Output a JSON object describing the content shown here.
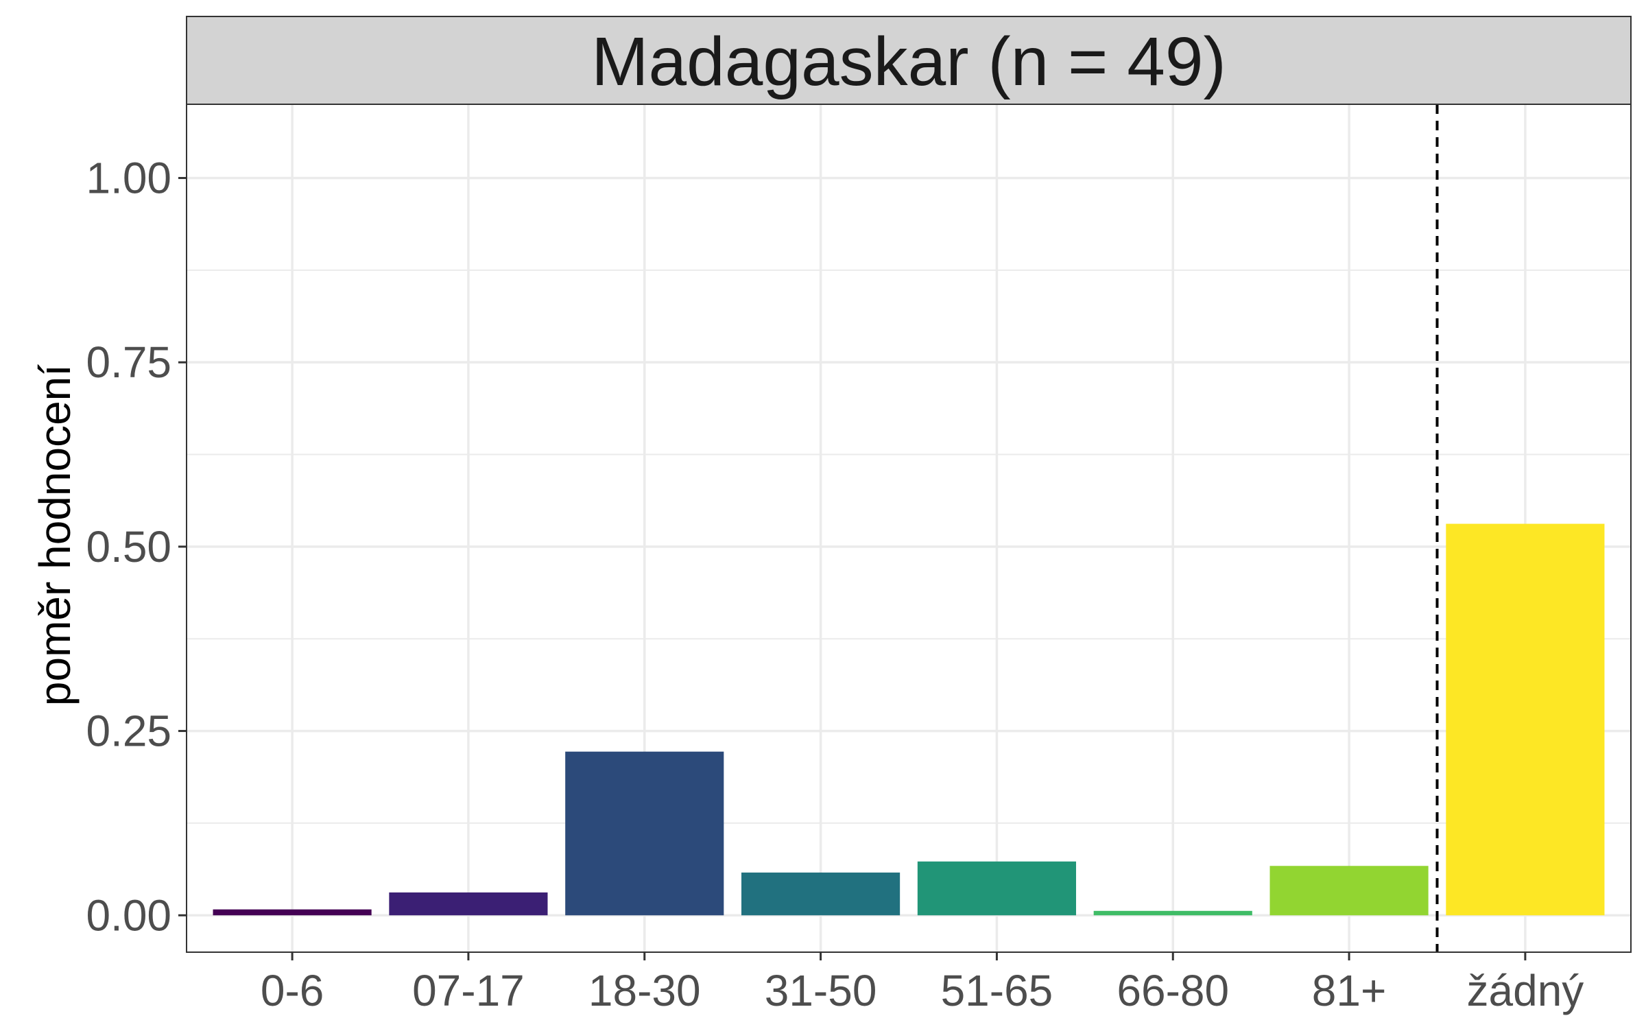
{
  "chart_data": {
    "type": "bar",
    "title": "Madagaskar (n = 49)",
    "xlabel": "",
    "ylabel": "poměr hodnocení",
    "categories": [
      "0-6",
      "07-17",
      "18-30",
      "31-50",
      "51-65",
      "66-80",
      "81+",
      "žádný"
    ],
    "values": [
      0.008,
      0.031,
      0.222,
      0.058,
      0.073,
      0.006,
      0.067,
      0.531
    ],
    "colors": [
      "#440154",
      "#3b1f74",
      "#2c4a7a",
      "#21717f",
      "#219577",
      "#3fbc66",
      "#92d531",
      "#fde725"
    ],
    "ylim": [
      -0.05,
      1.1
    ],
    "yticks": [
      0,
      0.25,
      0.5,
      0.75,
      1
    ],
    "ytick_labels": [
      "0.00",
      "0.25",
      "0.50",
      "0.75",
      "1.00"
    ],
    "reference_line": {
      "between": [
        "81+",
        "žádný"
      ],
      "style": "dashed"
    },
    "grid": true,
    "legend": "none",
    "theme": {
      "strip_fill": "#d3d3d3",
      "grid_color": "#ebebeb",
      "panel_border": "#333333"
    }
  }
}
